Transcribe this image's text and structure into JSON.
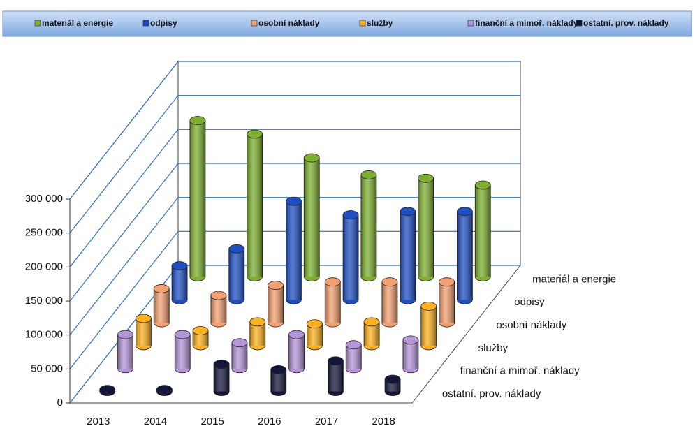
{
  "chart_data": {
    "type": "bar3d",
    "categories": [
      "2013",
      "2014",
      "2015",
      "2016",
      "2017",
      "2018"
    ],
    "series": [
      {
        "name": "materiál a energie",
        "color": "#7db02e",
        "values": [
          230000,
          210000,
          175000,
          150000,
          145000,
          135000
        ]
      },
      {
        "name": "odpisy",
        "color": "#1f4fc4",
        "values": [
          50000,
          75000,
          145000,
          125000,
          130000,
          130000
        ]
      },
      {
        "name": "osobní náklady",
        "color": "#f4a070",
        "values": [
          50000,
          40000,
          55000,
          60000,
          60000,
          60000
        ]
      },
      {
        "name": "služby",
        "color": "#ffb21e",
        "values": [
          40000,
          22000,
          35000,
          32000,
          35000,
          58000
        ]
      },
      {
        "name": "finanční a mimoř. náklady",
        "color": "#b495d8",
        "values": [
          50000,
          50000,
          38000,
          50000,
          35000,
          42000
        ]
      },
      {
        "name": "ostatní. prov. náklady",
        "color": "#14163a",
        "values": [
          3000,
          3000,
          40000,
          32000,
          45000,
          18000
        ]
      }
    ],
    "ylim": [
      0,
      300000
    ],
    "yticks": [
      {
        "value": 0,
        "label": "0"
      },
      {
        "value": 50000,
        "label": "50 000"
      },
      {
        "value": 100000,
        "label": "100 000"
      },
      {
        "value": 150000,
        "label": "150 000"
      },
      {
        "value": 200000,
        "label": "200 000"
      },
      {
        "value": 250000,
        "label": "250 000"
      },
      {
        "value": 300000,
        "label": "300 000"
      }
    ],
    "grid": true
  }
}
